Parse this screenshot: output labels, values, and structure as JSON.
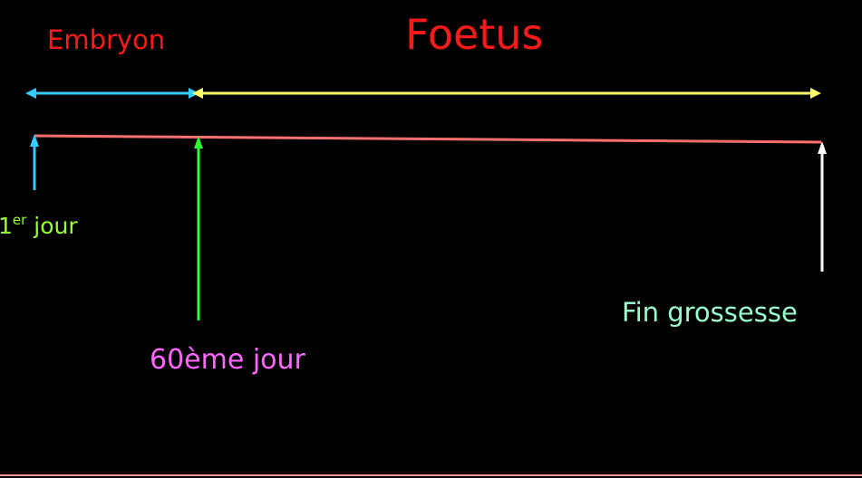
{
  "labels": {
    "embryon": "Embryon",
    "foetus": "Foetus",
    "first_day_number": "1",
    "first_day_superscript": "er",
    "first_day_word": " jour",
    "day60": "60ème jour",
    "end_pregnancy": "Fin grossesse"
  },
  "colors": {
    "background": "#000000",
    "embryon_text": "#ff1a1a",
    "foetus_text": "#ff1a1a",
    "embryon_span_arrow": "#33ccff",
    "foetus_span_arrow": "#ffff66",
    "timeline": "#ff7070",
    "first_day_marker": "#33ccff",
    "first_day_text": "#99ff33",
    "day60_marker": "#33ff33",
    "day60_text": "#ff66ff",
    "end_marker": "#ffffff",
    "end_text": "#99ffcc",
    "bottom_rule": "#ff9999"
  }
}
